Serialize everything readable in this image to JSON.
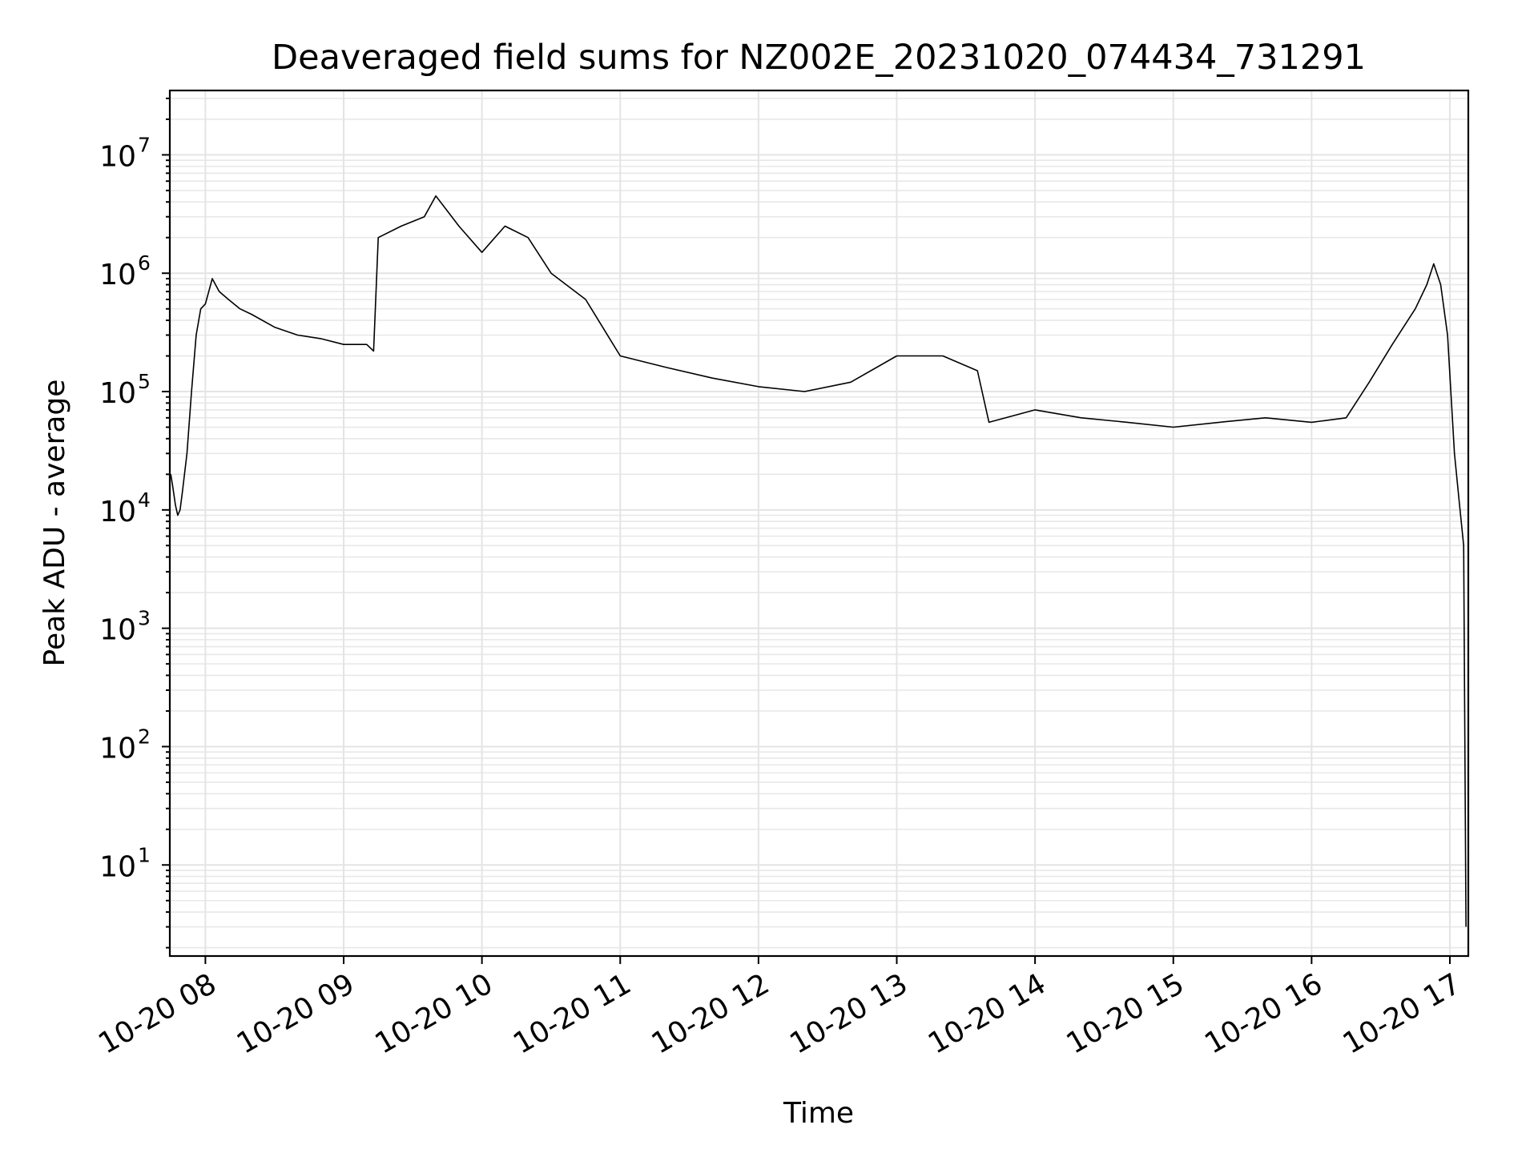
{
  "chart_data": {
    "type": "line",
    "title": "Deaveraged field sums for NZ002E_20231020_074434_731291",
    "xlabel": "Time",
    "ylabel": "Peak ADU - average",
    "yscale": "log",
    "ylim": [
      1.7,
      35000000
    ],
    "xlim": [
      "2023-10-20 07:44:34",
      "2023-10-20 17:08:00"
    ],
    "grid": "major and minor, light gray",
    "line_color": "#000000",
    "x_tick_labels": [
      "10-20 08",
      "10-20 09",
      "10-20 10",
      "10-20 11",
      "10-20 12",
      "10-20 13",
      "10-20 14",
      "10-20 15",
      "10-20 16",
      "10-20 17"
    ],
    "x_ticks": [
      "2023-10-20 08:00",
      "2023-10-20 09:00",
      "2023-10-20 10:00",
      "2023-10-20 11:00",
      "2023-10-20 12:00",
      "2023-10-20 13:00",
      "2023-10-20 14:00",
      "2023-10-20 15:00",
      "2023-10-20 16:00",
      "2023-10-20 17:00"
    ],
    "y_ticks": [
      {
        "value": 10,
        "base": "10",
        "exp": "1"
      },
      {
        "value": 100,
        "base": "10",
        "exp": "2"
      },
      {
        "value": 1000,
        "base": "10",
        "exp": "3"
      },
      {
        "value": 10000,
        "base": "10",
        "exp": "4"
      },
      {
        "value": 100000,
        "base": "10",
        "exp": "5"
      },
      {
        "value": 1000000,
        "base": "10",
        "exp": "6"
      },
      {
        "value": 10000000,
        "base": "10",
        "exp": "7"
      }
    ],
    "series": [
      {
        "x": [
          "2023-10-20 07:45",
          "2023-10-20 07:46",
          "2023-10-20 07:47",
          "2023-10-20 07:48",
          "2023-10-20 07:49",
          "2023-10-20 07:50",
          "2023-10-20 07:52",
          "2023-10-20 07:54",
          "2023-10-20 07:56",
          "2023-10-20 07:58",
          "2023-10-20 08:00",
          "2023-10-20 08:03",
          "2023-10-20 08:06",
          "2023-10-20 08:10",
          "2023-10-20 08:15",
          "2023-10-20 08:20",
          "2023-10-20 08:30",
          "2023-10-20 08:40",
          "2023-10-20 08:50",
          "2023-10-20 09:00",
          "2023-10-20 09:10",
          "2023-10-20 09:13",
          "2023-10-20 09:15",
          "2023-10-20 09:25",
          "2023-10-20 09:35",
          "2023-10-20 09:40",
          "2023-10-20 09:50",
          "2023-10-20 10:00",
          "2023-10-20 10:10",
          "2023-10-20 10:20",
          "2023-10-20 10:30",
          "2023-10-20 10:45",
          "2023-10-20 11:00",
          "2023-10-20 11:20",
          "2023-10-20 11:40",
          "2023-10-20 12:00",
          "2023-10-20 12:20",
          "2023-10-20 12:40",
          "2023-10-20 13:00",
          "2023-10-20 13:20",
          "2023-10-20 13:35",
          "2023-10-20 13:40",
          "2023-10-20 14:00",
          "2023-10-20 14:20",
          "2023-10-20 14:40",
          "2023-10-20 15:00",
          "2023-10-20 15:20",
          "2023-10-20 15:40",
          "2023-10-20 16:00",
          "2023-10-20 16:15",
          "2023-10-20 16:25",
          "2023-10-20 16:35",
          "2023-10-20 16:45",
          "2023-10-20 16:50",
          "2023-10-20 16:53",
          "2023-10-20 16:56",
          "2023-10-20 16:59",
          "2023-10-20 17:02",
          "2023-10-20 17:04",
          "2023-10-20 17:06",
          "2023-10-20 17:07"
        ],
        "y": [
          20000,
          15000,
          11000,
          9000,
          10000,
          14000,
          30000,
          100000,
          300000,
          500000,
          550000,
          900000,
          700000,
          600000,
          500000,
          450000,
          350000,
          300000,
          280000,
          250000,
          250000,
          220000,
          2000000,
          2500000,
          3000000,
          4500000,
          2500000,
          1500000,
          2500000,
          2000000,
          1000000,
          600000,
          200000,
          160000,
          130000,
          110000,
          100000,
          120000,
          200000,
          200000,
          150000,
          55000,
          70000,
          60000,
          55000,
          50000,
          55000,
          60000,
          55000,
          60000,
          120000,
          250000,
          500000,
          800000,
          1200000,
          800000,
          300000,
          30000,
          12000,
          5000,
          3
        ]
      }
    ]
  }
}
